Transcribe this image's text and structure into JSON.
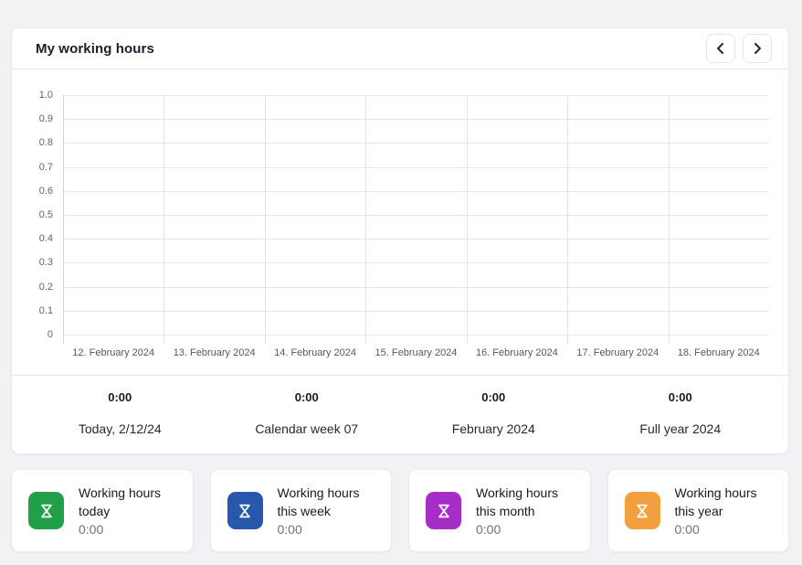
{
  "panel": {
    "title": "My working hours",
    "nav": {
      "prev_icon": "chevron-left-icon",
      "next_icon": "chevron-right-icon"
    }
  },
  "chart_data": {
    "type": "bar",
    "title": "",
    "xlabel": "",
    "ylabel": "",
    "x": [
      "12. February 2024",
      "13. February 2024",
      "14. February 2024",
      "15. February 2024",
      "16. February 2024",
      "17. February 2024",
      "18. February 2024"
    ],
    "series": [
      {
        "name": "Working hours",
        "values": [
          0,
          0,
          0,
          0,
          0,
          0,
          0
        ]
      }
    ],
    "ylim": [
      0,
      1.0
    ],
    "yticks": [
      "1.0",
      "0.9",
      "0.8",
      "0.7",
      "0.6",
      "0.5",
      "0.4",
      "0.3",
      "0.2",
      "0.1",
      "0"
    ],
    "grid": true,
    "legend": false
  },
  "summary": {
    "items": [
      {
        "value": "0:00",
        "label": "Today, 2/12/24"
      },
      {
        "value": "0:00",
        "label": "Calendar week 07"
      },
      {
        "value": "0:00",
        "label": "February 2024"
      },
      {
        "value": "0:00",
        "label": "Full year 2024"
      }
    ]
  },
  "cards": [
    {
      "title": "Working hours today",
      "value": "0:00",
      "icon": "hourglass-icon",
      "color": "#22a049"
    },
    {
      "title": "Working hours this week",
      "value": "0:00",
      "icon": "hourglass-icon",
      "color": "#2858ab"
    },
    {
      "title": "Working hours this month",
      "value": "0:00",
      "icon": "hourglass-icon",
      "color": "#a72dc8"
    },
    {
      "title": "Working hours this year",
      "value": "0:00",
      "icon": "hourglass-icon",
      "color": "#f2a03d"
    }
  ]
}
